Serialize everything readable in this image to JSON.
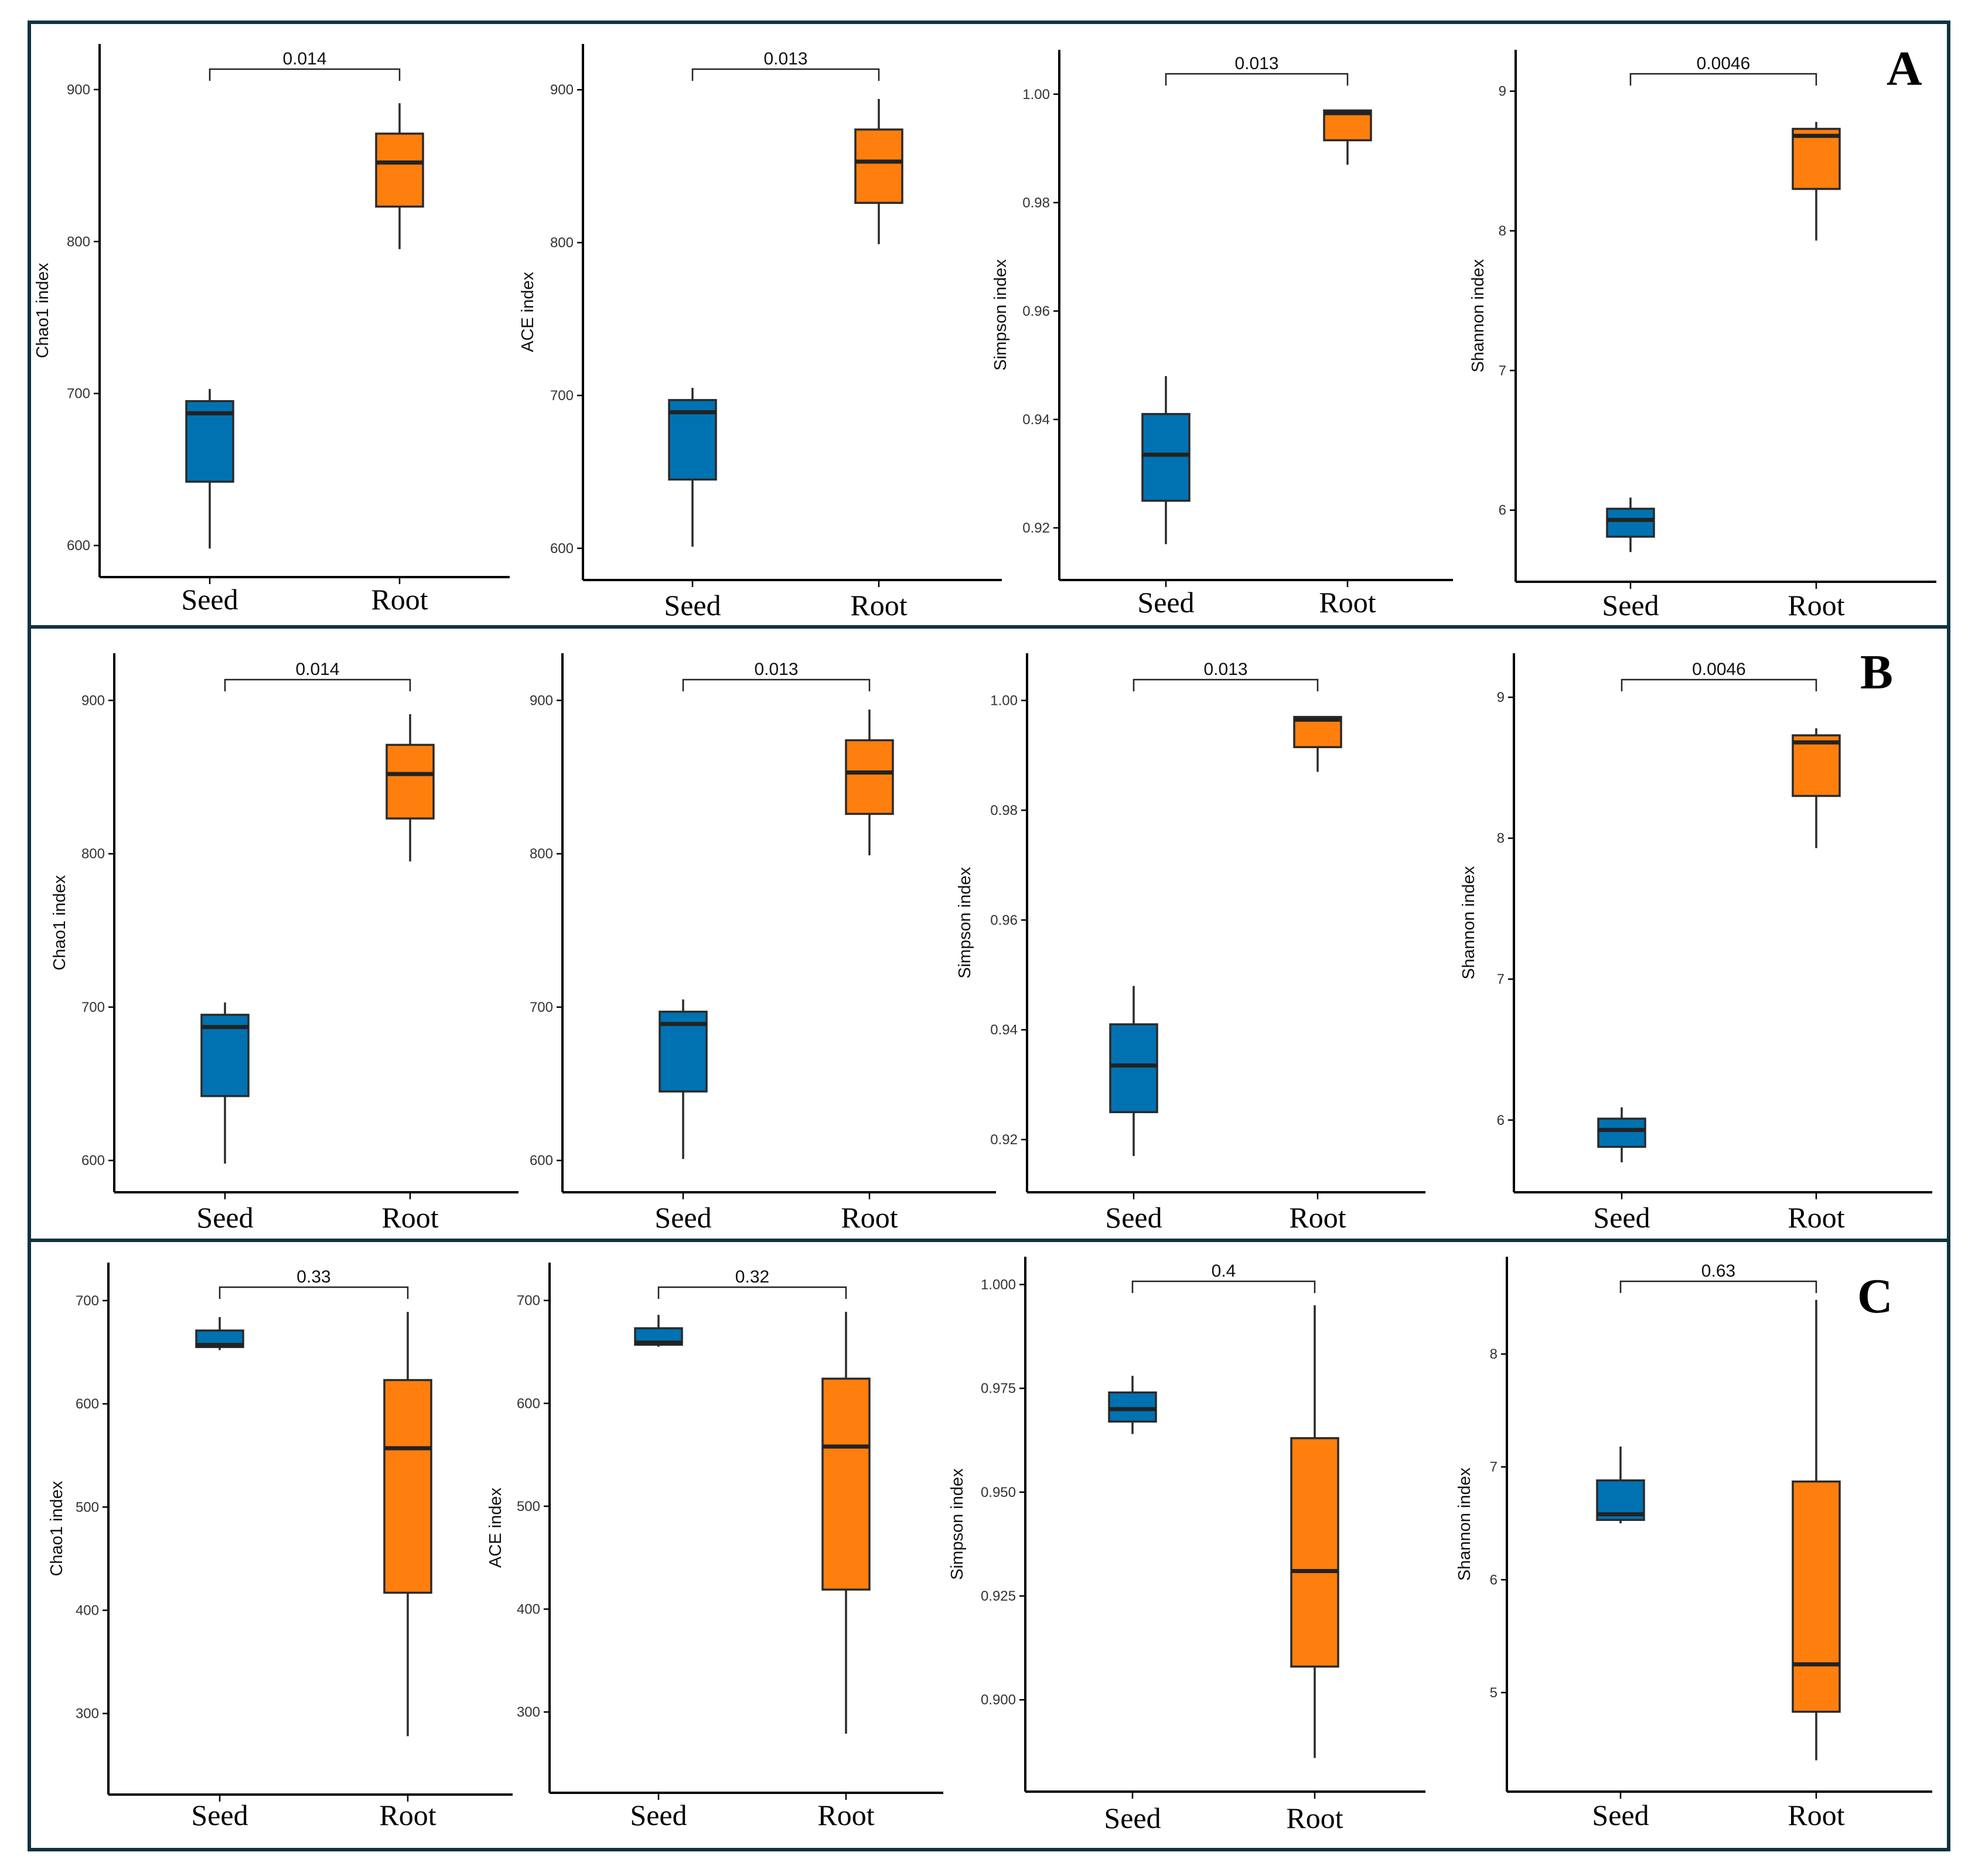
{
  "figure": {
    "categories": [
      "Seed",
      "Root"
    ],
    "colors": {
      "Seed": "#0072b2",
      "Root": "#ff7f0e",
      "frame": "#0f3340"
    }
  },
  "chart_data": [
    {
      "panel": "A",
      "type": "box",
      "title": "",
      "xlabel": "",
      "ylabel": "Chao1 index",
      "ylim": [
        585,
        925
      ],
      "yticks": [
        600,
        700,
        800,
        900
      ],
      "ytick_labels": [
        "600",
        "700",
        "800",
        "900"
      ],
      "categories": [
        "Seed",
        "Root"
      ],
      "series": [
        {
          "name": "Seed",
          "min": 598,
          "q1": 642,
          "median": 687,
          "q3": 695,
          "max": 703
        },
        {
          "name": "Root",
          "min": 795,
          "q1": 823,
          "median": 852,
          "q3": 871,
          "max": 891
        }
      ],
      "p_value": "0.014"
    },
    {
      "panel": "A",
      "type": "box",
      "title": "",
      "xlabel": "",
      "ylabel": "ACE index",
      "ylim": [
        585,
        925
      ],
      "yticks": [
        600,
        700,
        800,
        900
      ],
      "ytick_labels": [
        "600",
        "700",
        "800",
        "900"
      ],
      "categories": [
        "Seed",
        "Root"
      ],
      "series": [
        {
          "name": "Seed",
          "min": 601,
          "q1": 645,
          "median": 689,
          "q3": 697,
          "max": 705
        },
        {
          "name": "Root",
          "min": 799,
          "q1": 826,
          "median": 853,
          "q3": 874,
          "max": 894
        }
      ],
      "p_value": "0.013"
    },
    {
      "panel": "A",
      "type": "box",
      "title": "",
      "xlabel": "",
      "ylabel": "Simpson index",
      "ylim": [
        0.912,
        1.007
      ],
      "yticks": [
        0.92,
        0.94,
        0.96,
        0.98,
        1.0
      ],
      "ytick_labels": [
        "0.92",
        "0.94",
        "0.96",
        "0.98",
        "1.00"
      ],
      "categories": [
        "Seed",
        "Root"
      ],
      "series": [
        {
          "name": "Seed",
          "min": 0.917,
          "q1": 0.925,
          "median": 0.9335,
          "q3": 0.941,
          "max": 0.948
        },
        {
          "name": "Root",
          "min": 0.987,
          "q1": 0.9915,
          "median": 0.9965,
          "q3": 0.997,
          "max": 0.997
        }
      ],
      "p_value": "0.013"
    },
    {
      "panel": "A",
      "type": "box",
      "title": "",
      "xlabel": "",
      "ylabel": "Shannon index",
      "ylim": [
        5.55,
        9.25
      ],
      "yticks": [
        6,
        7,
        8,
        9
      ],
      "ytick_labels": [
        "6",
        "7",
        "8",
        "9"
      ],
      "categories": [
        "Seed",
        "Root"
      ],
      "series": [
        {
          "name": "Seed",
          "min": 5.7,
          "q1": 5.81,
          "median": 5.93,
          "q3": 6.01,
          "max": 6.09
        },
        {
          "name": "Root",
          "min": 7.93,
          "q1": 8.3,
          "median": 8.68,
          "q3": 8.73,
          "max": 8.78
        }
      ],
      "p_value": "0.0046"
    },
    {
      "panel": "B",
      "type": "box",
      "title": "",
      "xlabel": "",
      "ylabel": "Chao1 index",
      "ylim": [
        585,
        925
      ],
      "yticks": [
        600,
        700,
        800,
        900
      ],
      "ytick_labels": [
        "600",
        "700",
        "800",
        "900"
      ],
      "categories": [
        "Seed",
        "Root"
      ],
      "series": [
        {
          "name": "Seed",
          "min": 598,
          "q1": 642,
          "median": 687,
          "q3": 695,
          "max": 703
        },
        {
          "name": "Root",
          "min": 795,
          "q1": 823,
          "median": 852,
          "q3": 871,
          "max": 891
        }
      ],
      "p_value": "0.014"
    },
    {
      "panel": "B",
      "type": "box",
      "title": "",
      "xlabel": "",
      "ylabel": "",
      "ylim": [
        585,
        925
      ],
      "yticks": [
        600,
        700,
        800,
        900
      ],
      "ytick_labels": [
        "600",
        "700",
        "800",
        "900"
      ],
      "categories": [
        "Seed",
        "Root"
      ],
      "series": [
        {
          "name": "Seed",
          "min": 601,
          "q1": 645,
          "median": 689,
          "q3": 697,
          "max": 705
        },
        {
          "name": "Root",
          "min": 799,
          "q1": 826,
          "median": 853,
          "q3": 874,
          "max": 894
        }
      ],
      "p_value": "0.013"
    },
    {
      "panel": "B",
      "type": "box",
      "title": "",
      "xlabel": "",
      "ylabel": "Simpson index",
      "ylim": [
        0.912,
        1.007
      ],
      "yticks": [
        0.92,
        0.94,
        0.96,
        0.98,
        1.0
      ],
      "ytick_labels": [
        "0.92",
        "0.94",
        "0.96",
        "0.98",
        "1.00"
      ],
      "categories": [
        "Seed",
        "Root"
      ],
      "series": [
        {
          "name": "Seed",
          "min": 0.917,
          "q1": 0.925,
          "median": 0.9335,
          "q3": 0.941,
          "max": 0.948
        },
        {
          "name": "Root",
          "min": 0.987,
          "q1": 0.9915,
          "median": 0.9965,
          "q3": 0.997,
          "max": 0.997
        }
      ],
      "p_value": "0.013"
    },
    {
      "panel": "B",
      "type": "box",
      "title": "",
      "xlabel": "",
      "ylabel": "Shannon index",
      "ylim": [
        5.55,
        9.25
      ],
      "yticks": [
        6,
        7,
        8,
        9
      ],
      "ytick_labels": [
        "6",
        "7",
        "8",
        "9"
      ],
      "categories": [
        "Seed",
        "Root"
      ],
      "series": [
        {
          "name": "Seed",
          "min": 5.7,
          "q1": 5.81,
          "median": 5.93,
          "q3": 6.01,
          "max": 6.09
        },
        {
          "name": "Root",
          "min": 7.93,
          "q1": 8.3,
          "median": 8.68,
          "q3": 8.73,
          "max": 8.78
        }
      ],
      "p_value": "0.0046"
    },
    {
      "panel": "C",
      "type": "box",
      "title": "",
      "xlabel": "",
      "ylabel": "Chao1 index",
      "ylim": [
        230,
        730
      ],
      "yticks": [
        300,
        400,
        500,
        600,
        700
      ],
      "ytick_labels": [
        "300",
        "400",
        "500",
        "600",
        "700"
      ],
      "categories": [
        "Seed",
        "Root"
      ],
      "series": [
        {
          "name": "Seed",
          "min": 652,
          "q1": 655,
          "median": 657,
          "q3": 671,
          "max": 684
        },
        {
          "name": "Root",
          "min": 278,
          "q1": 417,
          "median": 557,
          "q3": 623,
          "max": 689
        }
      ],
      "p_value": "0.33"
    },
    {
      "panel": "C",
      "type": "box",
      "title": "",
      "xlabel": "",
      "ylabel": "ACE index",
      "ylim": [
        230,
        730
      ],
      "yticks": [
        300,
        400,
        500,
        600,
        700
      ],
      "ytick_labels": [
        "300",
        "400",
        "500",
        "600",
        "700"
      ],
      "categories": [
        "Seed",
        "Root"
      ],
      "series": [
        {
          "name": "Seed",
          "min": 655,
          "q1": 657,
          "median": 659,
          "q3": 673,
          "max": 686
        },
        {
          "name": "Root",
          "min": 279,
          "q1": 419,
          "median": 558,
          "q3": 624,
          "max": 689
        }
      ],
      "p_value": "0.32"
    },
    {
      "panel": "C",
      "type": "box",
      "title": "",
      "xlabel": "",
      "ylabel": "Simpson index",
      "ylim": [
        0.88,
        1.005
      ],
      "yticks": [
        0.9,
        0.925,
        0.95,
        0.975,
        1.0
      ],
      "ytick_labels": [
        "0.900",
        "0.925",
        "0.950",
        "0.975",
        "1.000"
      ],
      "categories": [
        "Seed",
        "Root"
      ],
      "series": [
        {
          "name": "Seed",
          "min": 0.964,
          "q1": 0.967,
          "median": 0.97,
          "q3": 0.974,
          "max": 0.978
        },
        {
          "name": "Root",
          "min": 0.886,
          "q1": 0.908,
          "median": 0.931,
          "q3": 0.963,
          "max": 0.995
        }
      ],
      "p_value": "0.4"
    },
    {
      "panel": "C",
      "type": "box",
      "title": "",
      "xlabel": "",
      "ylabel": "Shannon index",
      "ylim": [
        4.2,
        8.8
      ],
      "yticks": [
        5,
        6,
        7,
        8
      ],
      "ytick_labels": [
        "5",
        "6",
        "7",
        "8"
      ],
      "categories": [
        "Seed",
        "Root"
      ],
      "series": [
        {
          "name": "Seed",
          "min": 6.5,
          "q1": 6.53,
          "median": 6.58,
          "q3": 6.88,
          "max": 7.18
        },
        {
          "name": "Root",
          "min": 4.4,
          "q1": 4.83,
          "median": 5.25,
          "q3": 6.87,
          "max": 8.48
        }
      ],
      "p_value": "0.63"
    }
  ]
}
